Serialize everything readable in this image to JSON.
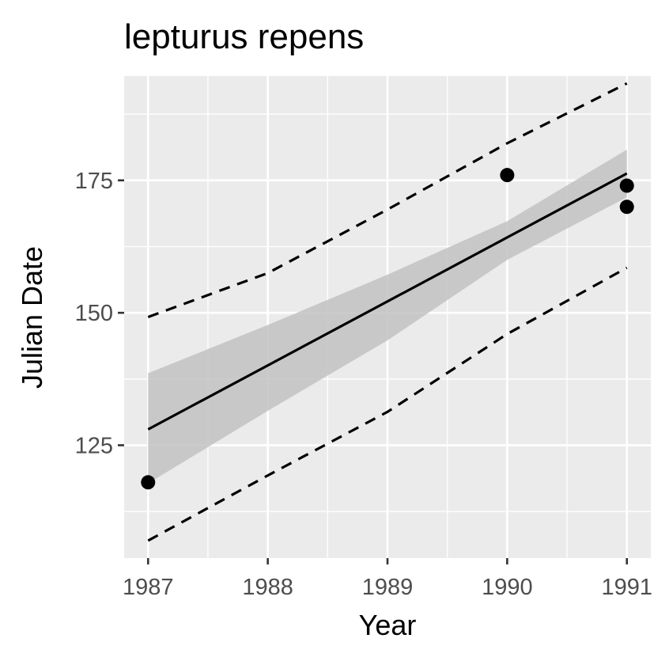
{
  "chart_data": {
    "type": "scatter",
    "title": "lepturus repens",
    "xlabel": "Year",
    "ylabel": "Julian Date",
    "xlim": [
      1986.8,
      1991.2
    ],
    "ylim": [
      103.7,
      194.7
    ],
    "x_ticks": [
      1987,
      1988,
      1989,
      1990,
      1991
    ],
    "y_ticks": [
      125,
      150,
      175
    ],
    "grid": true,
    "points": [
      {
        "x": 1987,
        "y": 118
      },
      {
        "x": 1990,
        "y": 176
      },
      {
        "x": 1991,
        "y": 174
      },
      {
        "x": 1991,
        "y": 170
      }
    ],
    "fit_line": [
      {
        "x": 1987,
        "y": 128
      },
      {
        "x": 1991,
        "y": 176.3
      }
    ],
    "confidence_band": {
      "x": [
        1987,
        1988,
        1989,
        1990,
        1991
      ],
      "lower": [
        117.8,
        131.5,
        144.8,
        160.0,
        171.8
      ],
      "upper": [
        138.6,
        147.7,
        157.2,
        167.3,
        180.8
      ]
    },
    "prediction_interval": {
      "x": [
        1987,
        1988,
        1989,
        1990,
        1991
      ],
      "lower": [
        107.0,
        119.3,
        131.3,
        146.0,
        158.5
      ],
      "upper": [
        149.2,
        157.5,
        169.5,
        182.0,
        193.3
      ]
    },
    "colors": {
      "panel": "#ebebeb",
      "grid": "#ffffff",
      "band": "#c2c2c2",
      "line": "#000000",
      "point": "#000000",
      "tick_text": "#4d4d4d"
    }
  }
}
